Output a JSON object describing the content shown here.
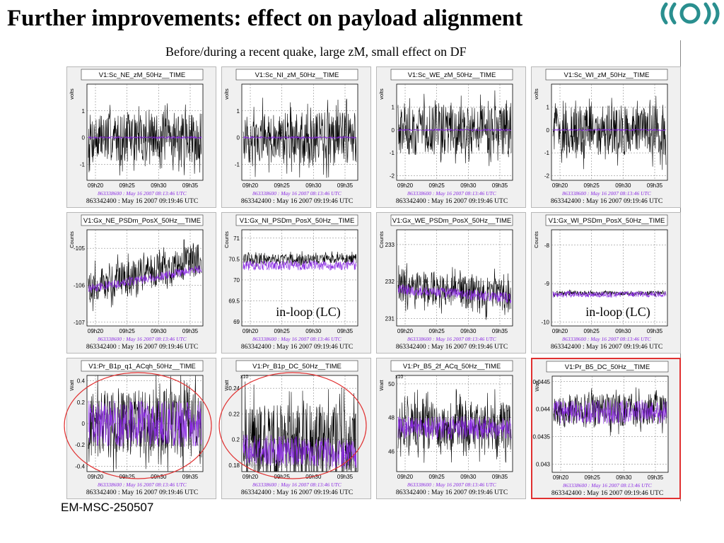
{
  "title": "Further improvements: effect on payload alignment",
  "subtitle": "Before/during a recent quake, large zM, small effect on DF",
  "footer": "EM-MSC-250507",
  "colors": {
    "before": "#000000",
    "during": "#8a2be2",
    "highlight_circle": "#e03030",
    "highlight_box": "#e03030"
  },
  "chart_data": [
    {
      "type": "line",
      "title": "V1:Sc_NE_zM_50Hz__TIME",
      "ylabel": "volts",
      "ylim": [
        -1.6,
        2.0
      ],
      "yticks": [
        "-1",
        "0",
        "1"
      ],
      "ytick_values": [
        -1,
        0,
        1
      ],
      "x": [
        "09h20",
        "09h25",
        "09h30",
        "09h35"
      ],
      "series": [
        {
          "name": "863338600 : May 16 2007 08:13:46 UTC",
          "center": 0.0,
          "spread": 0.04,
          "color": "#8a2be2"
        },
        {
          "name": "863342400 : May 16 2007 09:19:46 UTC",
          "center": 0.0,
          "spread": 0.9,
          "color": "#000000"
        }
      ]
    },
    {
      "type": "line",
      "title": "V1:Sc_NI_zM_50Hz__TIME",
      "ylabel": "volts",
      "ylim": [
        -1.6,
        2.0
      ],
      "yticks": [
        "-1",
        "0",
        "1"
      ],
      "ytick_values": [
        -1,
        0,
        1
      ],
      "x": [
        "09h20",
        "09h25",
        "09h30",
        "09h35"
      ],
      "series": [
        {
          "name": "863338600 : May 16 2007 08:13:46 UTC",
          "center": 0.0,
          "spread": 0.04,
          "color": "#8a2be2"
        },
        {
          "name": "863342400 : May 16 2007 09:19:46 UTC",
          "center": 0.0,
          "spread": 0.95,
          "color": "#000000"
        }
      ]
    },
    {
      "type": "line",
      "title": "V1:Sc_WE_zM_50Hz__TIME",
      "ylabel": "volts",
      "ylim": [
        -2.2,
        2.0
      ],
      "yticks": [
        "-2",
        "-1",
        "0",
        "1"
      ],
      "ytick_values": [
        -2,
        -1,
        0,
        1
      ],
      "x": [
        "09h20",
        "09h25",
        "09h30",
        "09h35"
      ],
      "series": [
        {
          "name": "863338600 : May 16 2007 08:13:46 UTC",
          "center": 0.0,
          "spread": 0.04,
          "color": "#8a2be2"
        },
        {
          "name": "863342400 : May 16 2007 09:19:46 UTC",
          "center": 0.0,
          "spread": 1.1,
          "color": "#000000"
        }
      ]
    },
    {
      "type": "line",
      "title": "V1:Sc_WI_zM_50Hz__TIME",
      "ylabel": "volts",
      "ylim": [
        -2.2,
        2.0
      ],
      "yticks": [
        "-2",
        "-1",
        "0",
        "1"
      ],
      "ytick_values": [
        -2,
        -1,
        0,
        1
      ],
      "x": [
        "09h20",
        "09h25",
        "09h30",
        "09h35"
      ],
      "series": [
        {
          "name": "863338600 : May 16 2007 08:13:46 UTC",
          "center": 0.0,
          "spread": 0.04,
          "color": "#8a2be2"
        },
        {
          "name": "863342400 : May 16 2007 09:19:46 UTC",
          "center": 0.0,
          "spread": 1.1,
          "color": "#000000"
        }
      ]
    },
    {
      "type": "line",
      "title": "V1:Gx_NE_PSDm_PosX_50Hz__TIME",
      "ylabel": "Counts",
      "ylim": [
        -107.1,
        -104.5
      ],
      "yticks": [
        "-107",
        "-106",
        "-105"
      ],
      "ytick_values": [
        -107,
        -106,
        -105
      ],
      "x": [
        "09h20",
        "09h25",
        "09h30",
        "09h35"
      ],
      "series": [
        {
          "name": "863338600 : May 16 2007 08:13:46 UTC",
          "center_start": -106.1,
          "center_end": -105.55,
          "spread": 0.12,
          "color": "#8a2be2"
        },
        {
          "name": "863342400 : May 16 2007 09:19:46 UTC",
          "center_start": -106.05,
          "center_end": -105.3,
          "spread": 0.45,
          "color": "#000000"
        }
      ]
    },
    {
      "type": "line",
      "title": "V1:Gx_NI_PSDm_PosX_50Hz__TIME",
      "ylabel": "Counts",
      "ylim": [
        68.9,
        71.2
      ],
      "yticks": [
        "69",
        "69.5",
        "70",
        "70.5",
        "71"
      ],
      "ytick_values": [
        69,
        69.5,
        70,
        70.5,
        71
      ],
      "x": [
        "09h20",
        "09h25",
        "09h30",
        "09h35"
      ],
      "annotation": "in-loop (LC)",
      "series": [
        {
          "name": "863338600 : May 16 2007 08:13:46 UTC",
          "center": 70.35,
          "spread": 0.12,
          "color": "#8a2be2"
        },
        {
          "name": "863342400 : May 16 2007 09:19:46 UTC",
          "center": 70.5,
          "spread": 0.12,
          "color": "#000000"
        }
      ]
    },
    {
      "type": "line",
      "title": "V1:Gx_WE_PSDm_PosX_50Hz__TIME",
      "ylabel": "Counts",
      "ylim": [
        230.8,
        233.4
      ],
      "yticks": [
        "231",
        "232",
        "233"
      ],
      "ytick_values": [
        231,
        232,
        233
      ],
      "x": [
        "09h20",
        "09h25",
        "09h30",
        "09h35"
      ],
      "series": [
        {
          "name": "863338600 : May 16 2007 08:13:46 UTC",
          "center_start": 231.8,
          "center_end": 231.55,
          "spread": 0.15,
          "color": "#8a2be2"
        },
        {
          "name": "863342400 : May 16 2007 09:19:46 UTC",
          "center_start": 231.9,
          "center_end": 231.6,
          "spread": 0.45,
          "color": "#000000"
        }
      ]
    },
    {
      "type": "line",
      "title": "V1:Gx_WI_PSDm_PosX_50Hz__TIME",
      "ylabel": "Counts",
      "ylim": [
        -10.1,
        -7.6
      ],
      "yticks": [
        "-10",
        "-9",
        "-8"
      ],
      "ytick_values": [
        -10,
        -9,
        -8
      ],
      "x": [
        "09h20",
        "09h25",
        "09h30",
        "09h35"
      ],
      "annotation": "in-loop (LC)",
      "series": [
        {
          "name": "863338600 : May 16 2007 08:13:46 UTC",
          "center": -9.28,
          "spread": 0.08,
          "color": "#8a2be2"
        },
        {
          "name": "863342400 : May 16 2007 09:19:46 UTC",
          "center": -9.25,
          "spread": 0.06,
          "color": "#000000"
        }
      ]
    },
    {
      "type": "line",
      "title": "V1:Pr_B1p_q1_ACqh_50Hz__TIME",
      "ylabel": "Watt",
      "ylim": [
        -0.45,
        0.45
      ],
      "yticks": [
        "-0.4",
        "-0.2",
        "0",
        "0.2",
        "0.4"
      ],
      "ytick_values": [
        -0.4,
        -0.2,
        0,
        0.2,
        0.4
      ],
      "x": [
        "09h20",
        "09h25",
        "09h30",
        "09h35"
      ],
      "highlight": "circle",
      "series": [
        {
          "name": "863338600 : May 16 2007 08:13:46 UTC",
          "center": 0.0,
          "spread": 0.22,
          "color": "#8a2be2"
        },
        {
          "name": "863342400 : May 16 2007 09:19:46 UTC",
          "center": 0.0,
          "spread": 0.32,
          "color": "#000000"
        }
      ]
    },
    {
      "type": "line",
      "title": "V1:Pr_B1p_DC_50Hz__TIME",
      "ylabel": "Watt",
      "exponent": "x10",
      "ylim": [
        0.175,
        0.25
      ],
      "yticks": [
        "0.18",
        "0.2",
        "0.22",
        "0.24"
      ],
      "ytick_values": [
        0.18,
        0.2,
        0.22,
        0.24
      ],
      "x": [
        "09h20",
        "09h25",
        "09h30",
        "09h35"
      ],
      "highlight": "circle",
      "series": [
        {
          "name": "863338600 : May 16 2007 08:13:46 UTC",
          "center_start": 0.193,
          "center_end": 0.188,
          "spread": 0.012,
          "color": "#8a2be2"
        },
        {
          "name": "863342400 : May 16 2007 09:19:46 UTC",
          "center_start": 0.198,
          "center_end": 0.195,
          "spread": 0.03,
          "color": "#000000"
        }
      ]
    },
    {
      "type": "line",
      "title": "V1:Pr_B5_2f_ACq_50Hz__TIME",
      "ylabel": "Watt",
      "exponent": "x10",
      "ylim": [
        44.8,
        50.5
      ],
      "yticks": [
        "46",
        "48",
        "50"
      ],
      "ytick_values": [
        46,
        48,
        50
      ],
      "x": [
        "09h20",
        "09h25",
        "09h30",
        "09h35"
      ],
      "series": [
        {
          "name": "863338600 : May 16 2007 08:13:46 UTC",
          "center": 47.4,
          "spread": 0.7,
          "color": "#8a2be2"
        },
        {
          "name": "863342400 : May 16 2007 09:19:46 UTC",
          "center": 47.5,
          "spread": 1.4,
          "color": "#000000"
        }
      ]
    },
    {
      "type": "line",
      "title": "V1:Pr_B5_DC_50Hz__TIME",
      "ylabel": "Watt",
      "ylim": [
        0.04285,
        0.0446
      ],
      "yticks": [
        "0.043",
        "0.0435",
        "0.044",
        "0.0445"
      ],
      "ytick_values": [
        0.043,
        0.0435,
        0.044,
        0.0445
      ],
      "x": [
        "09h20",
        "09h25",
        "09h30",
        "09h35"
      ],
      "highlight": "box",
      "series": [
        {
          "name": "863338600 : May 16 2007 08:13:46 UTC",
          "center": 0.04395,
          "spread": 0.00022,
          "color": "#8a2be2"
        },
        {
          "name": "863342400 : May 16 2007 09:19:46 UTC",
          "center": 0.04398,
          "spread": 0.0003,
          "color": "#000000"
        }
      ]
    }
  ]
}
